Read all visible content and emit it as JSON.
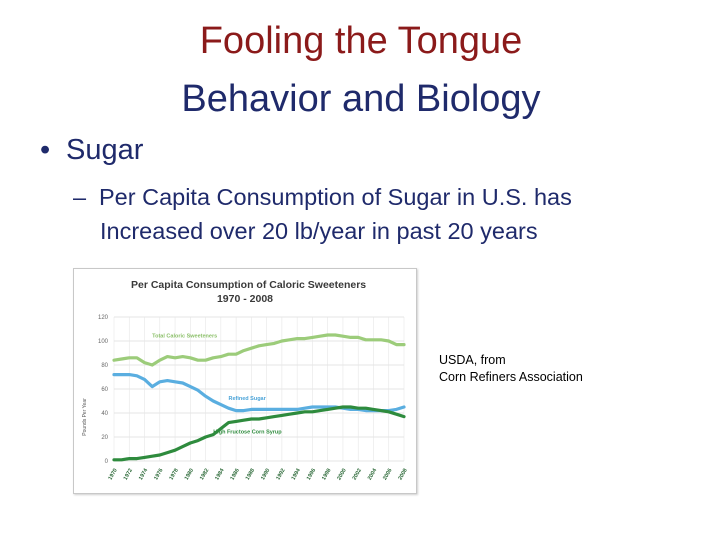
{
  "slide": {
    "title_line1": "Fooling the Tongue",
    "title_line2": "Behavior and Biology",
    "bullet": "Sugar",
    "sub_bullet_line1": "Per Capita Consumption of Sugar in U.S. has",
    "sub_bullet_line2": "Increased over 20 lb/year in past 20 years",
    "source_line1": "USDA, from",
    "source_line2": "Corn Refiners Association",
    "colors": {
      "title_red": "#8b1a1a",
      "text_blue": "#1f2a6b"
    }
  },
  "chart_data": {
    "type": "line",
    "title": "Per Capita Consumption of Caloric Sweeteners",
    "subtitle": "1970 - 2008",
    "xlabel": "",
    "ylabel": "Pounds Per Year",
    "xlim": [
      1970,
      2008
    ],
    "ylim": [
      0,
      120
    ],
    "yticks": [
      0,
      20,
      40,
      60,
      80,
      100,
      120
    ],
    "xticks": [
      1970,
      1972,
      1974,
      1976,
      1978,
      1980,
      1982,
      1984,
      1986,
      1988,
      1990,
      1992,
      1994,
      1996,
      1998,
      2000,
      2002,
      2004,
      2006,
      2008
    ],
    "grid": true,
    "x": [
      1970,
      1971,
      1972,
      1973,
      1974,
      1975,
      1976,
      1977,
      1978,
      1979,
      1980,
      1981,
      1982,
      1983,
      1984,
      1985,
      1986,
      1987,
      1988,
      1989,
      1990,
      1991,
      1992,
      1993,
      1994,
      1995,
      1996,
      1997,
      1998,
      1999,
      2000,
      2001,
      2002,
      2003,
      2004,
      2005,
      2006,
      2007,
      2008
    ],
    "series": [
      {
        "name": "Total Caloric Sweeteners",
        "color": "#9ccc7a",
        "values": [
          84,
          85,
          86,
          86,
          82,
          80,
          84,
          87,
          86,
          87,
          86,
          84,
          84,
          86,
          87,
          89,
          89,
          92,
          94,
          96,
          97,
          98,
          100,
          101,
          102,
          102,
          103,
          104,
          105,
          105,
          104,
          103,
          103,
          101,
          101,
          101,
          100,
          97,
          97
        ]
      },
      {
        "name": "Refined Sugar",
        "color": "#5aaee0",
        "values": [
          72,
          72,
          72,
          71,
          68,
          62,
          66,
          67,
          66,
          65,
          62,
          59,
          54,
          50,
          47,
          44,
          42,
          42,
          43,
          43,
          43,
          43,
          43,
          43,
          43,
          44,
          45,
          45,
          45,
          45,
          44,
          43,
          43,
          42,
          42,
          42,
          42,
          43,
          45
        ]
      },
      {
        "name": "High Fructose Corn Syrup",
        "color": "#2e8b3d",
        "values": [
          1,
          1,
          2,
          2,
          3,
          4,
          5,
          7,
          9,
          12,
          15,
          17,
          20,
          22,
          27,
          32,
          33,
          34,
          35,
          35,
          36,
          37,
          38,
          39,
          40,
          41,
          41,
          42,
          43,
          44,
          45,
          45,
          44,
          44,
          43,
          42,
          41,
          39,
          37
        ]
      }
    ]
  }
}
